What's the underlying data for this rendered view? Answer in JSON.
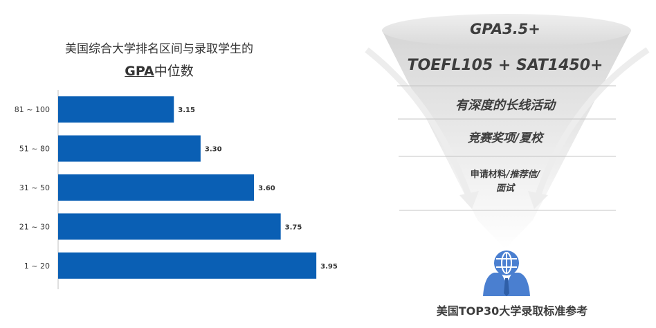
{
  "chart_data": {
    "type": "bar",
    "orientation": "horizontal",
    "title_line1": "美国综合大学排名区间与录取学生的",
    "title_line2_emphasis": "GPA",
    "title_line2_rest": "中位数",
    "categories": [
      "81 ~ 100",
      "51 ~ 80",
      "31 ~ 50",
      "21 ~ 30",
      "1 ~ 20"
    ],
    "values": [
      3.15,
      3.3,
      3.6,
      3.75,
      3.95
    ],
    "value_labels": [
      "3.15",
      "3.30",
      "3.60",
      "3.75",
      "3.95"
    ],
    "xlim": [
      2.5,
      4.0
    ],
    "bar_color": "#0a5fb4",
    "grid": false,
    "legend": "none"
  },
  "funnel": {
    "level1": "GPA3.5+",
    "level2": "TOEFL105 + SAT1450+",
    "level3": "有深度的长线活动",
    "level4": "竞赛奖项/夏校",
    "level5_a": "申请材料",
    "level5_b": "/推荐信/",
    "level5_c": "面试",
    "caption": "美国TOP30大学录取标准参考",
    "icon": "user-globe-icon",
    "icon_color": "#4a7fd0"
  }
}
